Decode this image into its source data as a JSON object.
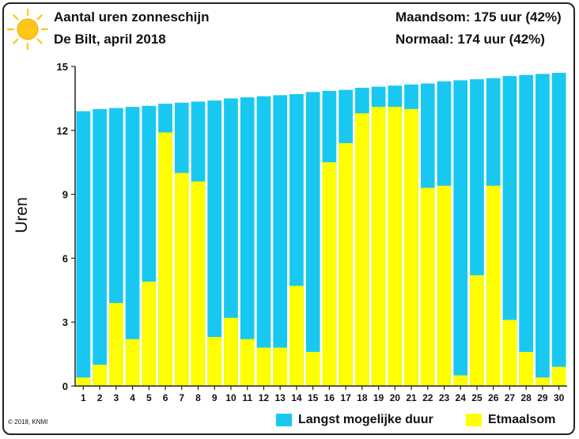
{
  "header": {
    "title": "Aantal uren zonneschijn",
    "subtitle": "De Bilt, april 2018",
    "monthly_sum": "Maandsom: 175 uur (42%)",
    "normal": "Normaal: 174 uur (42%)"
  },
  "footer": {
    "copyright": "© 2018, KNMI"
  },
  "colors": {
    "max_duration": "#19c8f0",
    "daily_sum": "#ffff00",
    "axis": "#222222",
    "sun": "#ffc61a"
  },
  "icons": {
    "logo": "sun-icon"
  },
  "chart_data": {
    "type": "bar",
    "ylabel": "Uren",
    "xlabel": "",
    "ylim": [
      0,
      15
    ],
    "yticks": [
      0,
      3,
      6,
      9,
      12,
      15
    ],
    "grid": false,
    "legend_position": "bottom-right",
    "categories": [
      "1",
      "2",
      "3",
      "4",
      "5",
      "6",
      "7",
      "8",
      "9",
      "10",
      "11",
      "12",
      "13",
      "14",
      "15",
      "16",
      "17",
      "18",
      "19",
      "20",
      "21",
      "22",
      "23",
      "24",
      "25",
      "26",
      "27",
      "28",
      "29",
      "30"
    ],
    "series": [
      {
        "name": "Langst mogelijke duur",
        "color": "#19c8f0",
        "values": [
          12.9,
          13.0,
          13.05,
          13.1,
          13.15,
          13.25,
          13.3,
          13.35,
          13.4,
          13.5,
          13.55,
          13.6,
          13.65,
          13.7,
          13.8,
          13.85,
          13.9,
          14.0,
          14.05,
          14.1,
          14.15,
          14.2,
          14.3,
          14.35,
          14.4,
          14.45,
          14.55,
          14.6,
          14.65,
          14.7
        ]
      },
      {
        "name": "Etmaalsom",
        "color": "#ffff00",
        "values": [
          0.4,
          1.0,
          3.9,
          2.2,
          4.9,
          11.9,
          10.0,
          9.6,
          2.3,
          3.2,
          2.2,
          1.8,
          1.8,
          4.7,
          1.6,
          10.5,
          11.4,
          12.8,
          13.1,
          13.1,
          13.0,
          9.3,
          9.4,
          0.5,
          5.2,
          9.4,
          3.1,
          1.6,
          0.4,
          0.9
        ]
      }
    ]
  }
}
